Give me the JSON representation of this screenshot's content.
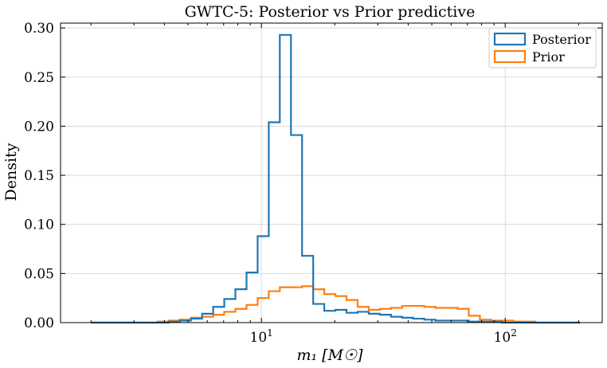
{
  "chart_data": {
    "type": "histogram",
    "title": "GWTC-5: Posterior vs Prior predictive",
    "xlabel": "m₁ [M☉]",
    "ylabel": "Density",
    "xscale": "log",
    "xlim": [
      1.5,
      250
    ],
    "ylim": [
      0,
      0.305
    ],
    "grid": true,
    "legend_position": "top-right",
    "x_tick_labels": [
      {
        "value": 10,
        "label": "10",
        "sup": "1"
      },
      {
        "value": 100,
        "label": "10",
        "sup": "2"
      }
    ],
    "y_ticks": [
      0.0,
      0.05,
      0.1,
      0.15,
      0.2,
      0.25,
      0.3
    ],
    "y_tick_labels": [
      "0.00",
      "0.05",
      "0.10",
      "0.15",
      "0.20",
      "0.25",
      "0.30"
    ],
    "bin_edges": [
      2.0,
      2.22,
      2.47,
      2.74,
      3.04,
      3.38,
      3.75,
      4.17,
      4.63,
      5.14,
      5.71,
      6.34,
      7.04,
      7.82,
      8.69,
      9.65,
      10.72,
      11.9,
      13.22,
      14.68,
      16.31,
      18.11,
      20.12,
      22.34,
      24.82,
      27.56,
      30.62,
      34.0,
      37.77,
      41.95,
      46.6,
      51.75,
      57.48,
      63.84,
      70.9,
      78.75,
      87.47,
      97.15,
      107.9,
      119.84,
      133.11,
      147.84,
      164.2,
      182.37,
      202.56
    ],
    "series": [
      {
        "name": "Posterior",
        "color": "#1f77b4",
        "values": [
          0,
          0,
          0,
          0,
          0,
          0,
          0,
          0.001,
          0.002,
          0.004,
          0.009,
          0.016,
          0.024,
          0.034,
          0.051,
          0.088,
          0.204,
          0.293,
          0.191,
          0.068,
          0.019,
          0.012,
          0.013,
          0.01,
          0.011,
          0.009,
          0.008,
          0.006,
          0.005,
          0.004,
          0.003,
          0.002,
          0.002,
          0.002,
          0.001,
          0.001,
          0.001,
          0,
          0,
          0,
          0,
          0,
          0,
          0
        ]
      },
      {
        "name": "Prior",
        "color": "#ff7f0e",
        "values": [
          0,
          0,
          0,
          0,
          0,
          0,
          0.001,
          0.002,
          0.003,
          0.005,
          0.006,
          0.008,
          0.011,
          0.014,
          0.018,
          0.025,
          0.032,
          0.036,
          0.036,
          0.037,
          0.034,
          0.029,
          0.027,
          0.023,
          0.016,
          0.013,
          0.014,
          0.015,
          0.017,
          0.017,
          0.016,
          0.015,
          0.015,
          0.014,
          0.007,
          0.003,
          0.002,
          0.002,
          0.001,
          0.001,
          0,
          0,
          0,
          0
        ]
      }
    ]
  }
}
